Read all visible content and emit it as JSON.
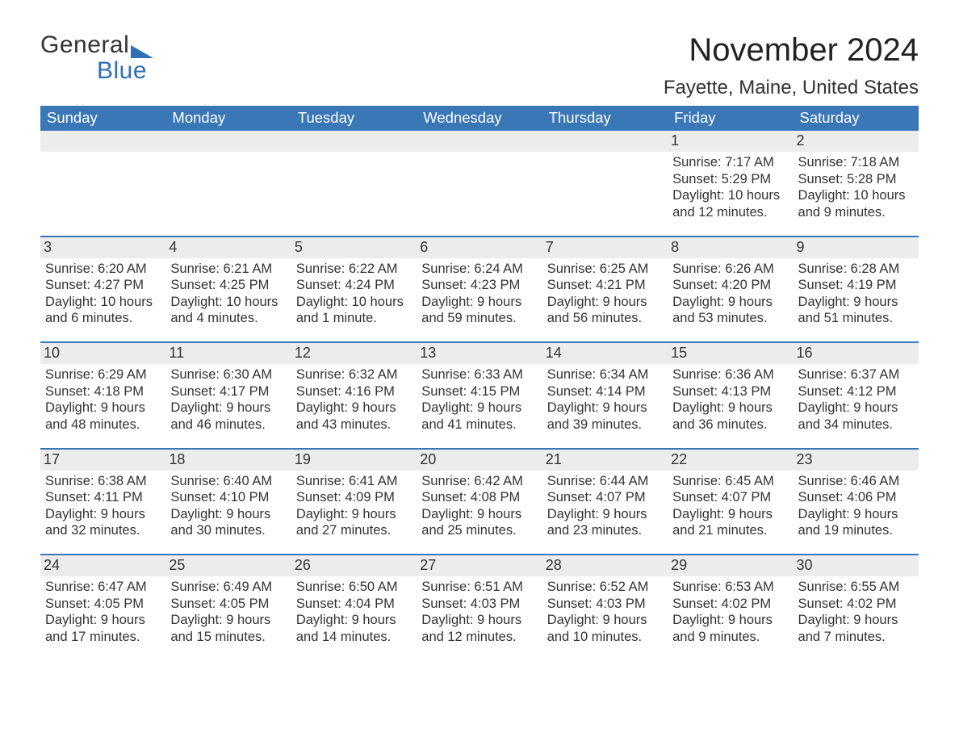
{
  "brand": {
    "line1": "General",
    "line2": "Blue",
    "accent_color": "#2f6fb3"
  },
  "title": "November 2024",
  "location": "Fayette, Maine, United States",
  "header_bg": "#3a77b6",
  "header_fg": "#ffffff",
  "daynum_bg": "#ececec",
  "row_border_color": "#3a77b6",
  "text_color": "#333333",
  "day_labels": [
    "Sunday",
    "Monday",
    "Tuesday",
    "Wednesday",
    "Thursday",
    "Friday",
    "Saturday"
  ],
  "label_sunrise": "Sunrise: ",
  "label_sunset": "Sunset: ",
  "label_daylight": "Daylight: ",
  "weeks": [
    [
      null,
      null,
      null,
      null,
      null,
      {
        "n": "1",
        "sunrise": "7:17 AM",
        "sunset": "5:29 PM",
        "daylight": "10 hours and 12 minutes."
      },
      {
        "n": "2",
        "sunrise": "7:18 AM",
        "sunset": "5:28 PM",
        "daylight": "10 hours and 9 minutes."
      }
    ],
    [
      {
        "n": "3",
        "sunrise": "6:20 AM",
        "sunset": "4:27 PM",
        "daylight": "10 hours and 6 minutes."
      },
      {
        "n": "4",
        "sunrise": "6:21 AM",
        "sunset": "4:25 PM",
        "daylight": "10 hours and 4 minutes."
      },
      {
        "n": "5",
        "sunrise": "6:22 AM",
        "sunset": "4:24 PM",
        "daylight": "10 hours and 1 minute."
      },
      {
        "n": "6",
        "sunrise": "6:24 AM",
        "sunset": "4:23 PM",
        "daylight": "9 hours and 59 minutes."
      },
      {
        "n": "7",
        "sunrise": "6:25 AM",
        "sunset": "4:21 PM",
        "daylight": "9 hours and 56 minutes."
      },
      {
        "n": "8",
        "sunrise": "6:26 AM",
        "sunset": "4:20 PM",
        "daylight": "9 hours and 53 minutes."
      },
      {
        "n": "9",
        "sunrise": "6:28 AM",
        "sunset": "4:19 PM",
        "daylight": "9 hours and 51 minutes."
      }
    ],
    [
      {
        "n": "10",
        "sunrise": "6:29 AM",
        "sunset": "4:18 PM",
        "daylight": "9 hours and 48 minutes."
      },
      {
        "n": "11",
        "sunrise": "6:30 AM",
        "sunset": "4:17 PM",
        "daylight": "9 hours and 46 minutes."
      },
      {
        "n": "12",
        "sunrise": "6:32 AM",
        "sunset": "4:16 PM",
        "daylight": "9 hours and 43 minutes."
      },
      {
        "n": "13",
        "sunrise": "6:33 AM",
        "sunset": "4:15 PM",
        "daylight": "9 hours and 41 minutes."
      },
      {
        "n": "14",
        "sunrise": "6:34 AM",
        "sunset": "4:14 PM",
        "daylight": "9 hours and 39 minutes."
      },
      {
        "n": "15",
        "sunrise": "6:36 AM",
        "sunset": "4:13 PM",
        "daylight": "9 hours and 36 minutes."
      },
      {
        "n": "16",
        "sunrise": "6:37 AM",
        "sunset": "4:12 PM",
        "daylight": "9 hours and 34 minutes."
      }
    ],
    [
      {
        "n": "17",
        "sunrise": "6:38 AM",
        "sunset": "4:11 PM",
        "daylight": "9 hours and 32 minutes."
      },
      {
        "n": "18",
        "sunrise": "6:40 AM",
        "sunset": "4:10 PM",
        "daylight": "9 hours and 30 minutes."
      },
      {
        "n": "19",
        "sunrise": "6:41 AM",
        "sunset": "4:09 PM",
        "daylight": "9 hours and 27 minutes."
      },
      {
        "n": "20",
        "sunrise": "6:42 AM",
        "sunset": "4:08 PM",
        "daylight": "9 hours and 25 minutes."
      },
      {
        "n": "21",
        "sunrise": "6:44 AM",
        "sunset": "4:07 PM",
        "daylight": "9 hours and 23 minutes."
      },
      {
        "n": "22",
        "sunrise": "6:45 AM",
        "sunset": "4:07 PM",
        "daylight": "9 hours and 21 minutes."
      },
      {
        "n": "23",
        "sunrise": "6:46 AM",
        "sunset": "4:06 PM",
        "daylight": "9 hours and 19 minutes."
      }
    ],
    [
      {
        "n": "24",
        "sunrise": "6:47 AM",
        "sunset": "4:05 PM",
        "daylight": "9 hours and 17 minutes."
      },
      {
        "n": "25",
        "sunrise": "6:49 AM",
        "sunset": "4:05 PM",
        "daylight": "9 hours and 15 minutes."
      },
      {
        "n": "26",
        "sunrise": "6:50 AM",
        "sunset": "4:04 PM",
        "daylight": "9 hours and 14 minutes."
      },
      {
        "n": "27",
        "sunrise": "6:51 AM",
        "sunset": "4:03 PM",
        "daylight": "9 hours and 12 minutes."
      },
      {
        "n": "28",
        "sunrise": "6:52 AM",
        "sunset": "4:03 PM",
        "daylight": "9 hours and 10 minutes."
      },
      {
        "n": "29",
        "sunrise": "6:53 AM",
        "sunset": "4:02 PM",
        "daylight": "9 hours and 9 minutes."
      },
      {
        "n": "30",
        "sunrise": "6:55 AM",
        "sunset": "4:02 PM",
        "daylight": "9 hours and 7 minutes."
      }
    ]
  ]
}
